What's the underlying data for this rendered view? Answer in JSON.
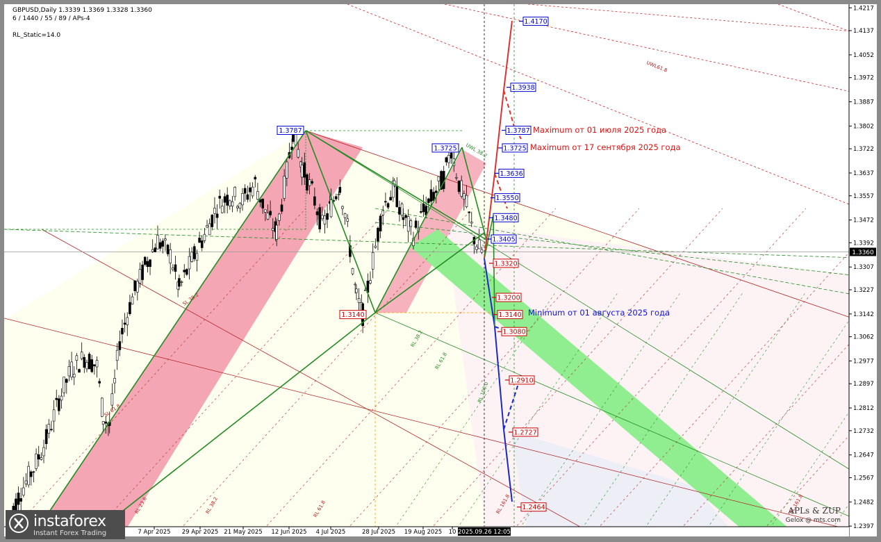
{
  "header": {
    "symbol_line": "GBPUSD,Daily  1.3339 1.3369 1.3328 1.3360",
    "params_line": "6 / 1440 / 55 / 89 / APs-4",
    "static_line": "RL_Static=14.0"
  },
  "chart_data": {
    "type": "line",
    "title": "",
    "symbol": "GBPUSD",
    "timeframe": "Daily",
    "ohlc": {
      "open": 1.3339,
      "high": 1.3369,
      "low": 1.3328,
      "close": 1.336
    },
    "current_price": "1.3360",
    "y_ticks": [
      "1.4217",
      "1.4137",
      "1.4052",
      "1.3972",
      "1.3887",
      "1.3802",
      "1.3722",
      "1.3637",
      "1.3557",
      "1.3472",
      "1.3392",
      "1.3307",
      "1.3227",
      "1.3142",
      "1.3062",
      "1.2977",
      "1.2897",
      "1.2812",
      "1.2732",
      "1.2647",
      "1.2567",
      "1.2482",
      "1.2397"
    ],
    "x_ticks": [
      "7 Apr 2025",
      "29 Apr 2025",
      "21 May 2025",
      "12 Jun 2025",
      "4 Jul 2025",
      "28 Jul 2025",
      "19 Aug 2025",
      "10"
    ],
    "cursor_time": "2025.09.26 12:05",
    "ylim": [
      1.239,
      1.4225
    ],
    "price_path": [
      {
        "x": 0,
        "y": 1.242
      },
      {
        "x": 10,
        "y": 1.252
      },
      {
        "x": 20,
        "y": 1.26
      },
      {
        "x": 30,
        "y": 1.27
      },
      {
        "x": 40,
        "y": 1.284
      },
      {
        "x": 50,
        "y": 1.295
      },
      {
        "x": 60,
        "y": 1.299
      },
      {
        "x": 70,
        "y": 1.296
      },
      {
        "x": 75,
        "y": 1.278
      },
      {
        "x": 80,
        "y": 1.275
      },
      {
        "x": 88,
        "y": 1.305
      },
      {
        "x": 98,
        "y": 1.32
      },
      {
        "x": 108,
        "y": 1.331
      },
      {
        "x": 118,
        "y": 1.34
      },
      {
        "x": 128,
        "y": 1.335
      },
      {
        "x": 135,
        "y": 1.323
      },
      {
        "x": 145,
        "y": 1.333
      },
      {
        "x": 155,
        "y": 1.342
      },
      {
        "x": 165,
        "y": 1.352
      },
      {
        "x": 175,
        "y": 1.356
      },
      {
        "x": 185,
        "y": 1.354
      },
      {
        "x": 195,
        "y": 1.36
      },
      {
        "x": 205,
        "y": 1.348
      },
      {
        "x": 212,
        "y": 1.343
      },
      {
        "x": 220,
        "y": 1.364
      },
      {
        "x": 225,
        "y": 1.3787
      },
      {
        "x": 232,
        "y": 1.366
      },
      {
        "x": 240,
        "y": 1.357
      },
      {
        "x": 248,
        "y": 1.345
      },
      {
        "x": 255,
        "y": 1.352
      },
      {
        "x": 262,
        "y": 1.36
      },
      {
        "x": 268,
        "y": 1.344
      },
      {
        "x": 275,
        "y": 1.32
      },
      {
        "x": 280,
        "y": 1.314
      },
      {
        "x": 288,
        "y": 1.333
      },
      {
        "x": 296,
        "y": 1.352
      },
      {
        "x": 305,
        "y": 1.358
      },
      {
        "x": 312,
        "y": 1.348
      },
      {
        "x": 320,
        "y": 1.342
      },
      {
        "x": 328,
        "y": 1.35
      },
      {
        "x": 336,
        "y": 1.356
      },
      {
        "x": 344,
        "y": 1.362
      },
      {
        "x": 350,
        "y": 1.3725
      },
      {
        "x": 356,
        "y": 1.36
      },
      {
        "x": 362,
        "y": 1.352
      },
      {
        "x": 368,
        "y": 1.341
      },
      {
        "x": 372,
        "y": 1.337
      },
      {
        "x": 376,
        "y": 1.336
      }
    ],
    "levels": [
      {
        "value": "1.4170",
        "color": "#0000cc"
      },
      {
        "value": "1.3938",
        "color": "#0000cc"
      },
      {
        "value": "1.3787",
        "color": "#0000cc"
      },
      {
        "value": "1.3725",
        "color": "#0000cc"
      },
      {
        "value": "1.3636",
        "color": "#0000cc"
      },
      {
        "value": "1.3550",
        "color": "#0000cc"
      },
      {
        "value": "1.3480",
        "color": "#0000cc"
      },
      {
        "value": "1.3405",
        "color": "#0000cc"
      },
      {
        "value": "1.3320",
        "color": "#cc0000"
      },
      {
        "value": "1.3200",
        "color": "#cc0000"
      },
      {
        "value": "1.3140",
        "color": "#cc0000"
      },
      {
        "value": "1.3080",
        "color": "#cc0000"
      },
      {
        "value": "1.2910",
        "color": "#cc0000"
      },
      {
        "value": "1.2727",
        "color": "#cc0000"
      },
      {
        "value": "1.2464",
        "color": "#cc0000"
      }
    ],
    "swing_labels": [
      {
        "value": "1.3787",
        "color": "#0000cc"
      },
      {
        "value": "1.3725",
        "color": "#0000cc"
      },
      {
        "value": "1.3140",
        "color": "#cc0000"
      }
    ],
    "annotations": [
      {
        "text": "Maximum от 01 июля 2025 года",
        "color": "#dd1111"
      },
      {
        "text": "Maximum от 17 сентября 2025 года",
        "color": "#dd1111"
      },
      {
        "text": "Minimum от 01 августа 2025 года",
        "color": "#1111dd"
      }
    ],
    "line_labels": [
      "UWL61.8",
      "SL 38.2",
      "SL 61.8",
      "RL 23.6",
      "RL 38.2",
      "RL 61.8",
      "RL 100.0",
      "RL 161.8",
      "UWL 38.2",
      "RL 38.2",
      "RL 61.8",
      "RL 161.8"
    ]
  },
  "branding": {
    "logo_name": "instaforex",
    "logo_tagline": "Instant Forex Trading",
    "watermark": "APLs & ZUP",
    "watermark_sub": "Gelox @ mts.com"
  },
  "colors": {
    "green_channel": "#90ee90",
    "pink_channel": "#f4a6b4",
    "bull_line": "#228b22",
    "red_forecast": "#e03030",
    "blue_forecast": "#1a28c8"
  }
}
